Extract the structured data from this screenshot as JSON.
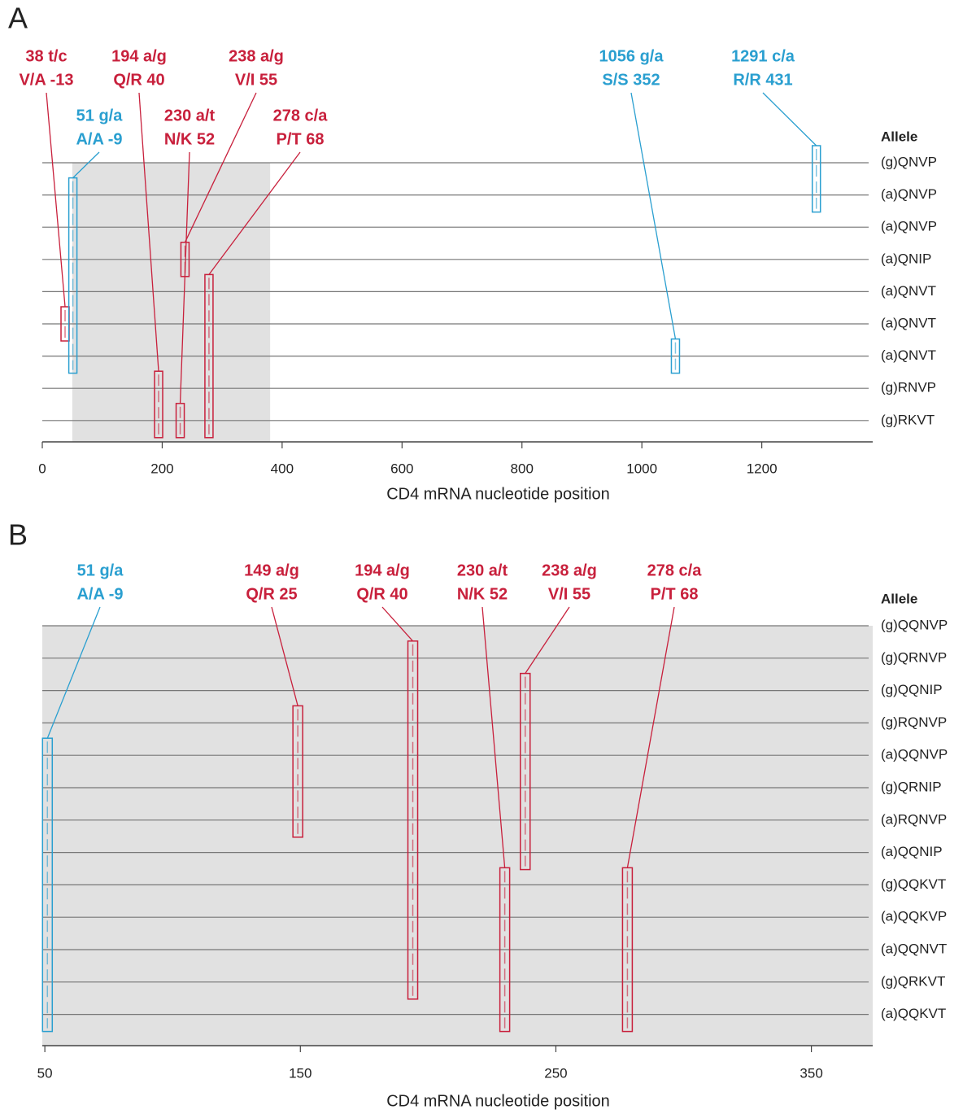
{
  "chart_data": [
    {
      "type": "variant",
      "panel": "A",
      "xlabel": "CD4 mRNA nucleotide position",
      "xlim": [
        0,
        1385
      ],
      "xticks": [
        0,
        200,
        400,
        600,
        800,
        1000,
        1200
      ],
      "shade": [
        50,
        380
      ],
      "shade_color": "#e1e1e1",
      "rows_title": "Allele",
      "rows": [
        "(g)QNVP",
        "(a)QNVP",
        "(a)QNVP",
        "(a)QNIP",
        "(a)QNVT",
        "(a)QNVT",
        "(a)QNVT",
        "(g)RNVP",
        "(g)RKVT"
      ],
      "variants": [
        {
          "label": "38 t/c",
          "effect": "V/A -13",
          "position": 38,
          "rows": [
            5,
            5
          ],
          "color": "#c8203c"
        },
        {
          "label": "51 g/a",
          "effect": "A/A -9",
          "position": 51,
          "rows": [
            1,
            6
          ],
          "color": "#2a9fd0"
        },
        {
          "label": "194 a/g",
          "effect": "Q/R 40",
          "position": 194,
          "rows": [
            7,
            8
          ],
          "color": "#c8203c"
        },
        {
          "label": "230 a/t",
          "effect": "N/K 52",
          "position": 230,
          "rows": [
            8,
            8
          ],
          "color": "#c8203c"
        },
        {
          "label": "238 a/g",
          "effect": "V/I 55",
          "position": 238,
          "rows": [
            3,
            3
          ],
          "color": "#c8203c"
        },
        {
          "label": "278 c/a",
          "effect": "P/T 68",
          "position": 278,
          "rows": [
            4,
            8
          ],
          "color": "#c8203c"
        },
        {
          "label": "1056 g/a",
          "effect": "S/S 352",
          "position": 1056,
          "rows": [
            6,
            6
          ],
          "color": "#2a9fd0"
        },
        {
          "label": "1291 c/a",
          "effect": "R/R 431",
          "position": 1291,
          "rows": [
            0,
            1
          ],
          "color": "#2a9fd0"
        }
      ]
    },
    {
      "type": "variant",
      "panel": "B",
      "xlabel": "CD4 mRNA nucleotide position",
      "xlim": [
        49,
        374
      ],
      "xticks": [
        50,
        150,
        250,
        350
      ],
      "shade": [
        49,
        374
      ],
      "shade_color": "#e1e1e1",
      "rows_title": "Allele",
      "rows": [
        "(g)QQNVP",
        "(g)QRNVP",
        "(g)QQNIP",
        "(g)RQNVP",
        "(a)QQNVP",
        "(g)QRNIP",
        "(a)RQNVP",
        "(a)QQNIP",
        "(g)QQKVT",
        "(a)QQKVP",
        "(a)QQNVT",
        "(g)QRKVT",
        "(a)QQKVT"
      ],
      "variants": [
        {
          "label": "51 g/a",
          "effect": "A/A -9",
          "position": 51,
          "rows": [
            4,
            12
          ],
          "color": "#2a9fd0"
        },
        {
          "label": "149 a/g",
          "effect": "Q/R 25",
          "position": 149,
          "rows": [
            3,
            6
          ],
          "color": "#c8203c"
        },
        {
          "label": "194 a/g",
          "effect": "Q/R 40",
          "position": 194,
          "rows": [
            1,
            11
          ],
          "color": "#c8203c"
        },
        {
          "label": "230 a/t",
          "effect": "N/K 52",
          "position": 230,
          "rows": [
            8,
            12
          ],
          "color": "#c8203c"
        },
        {
          "label": "238 a/g",
          "effect": "V/I 55",
          "position": 238,
          "rows": [
            2,
            7
          ],
          "color": "#c8203c"
        },
        {
          "label": "278 c/a",
          "effect": "P/T 68",
          "position": 278,
          "rows": [
            8,
            12
          ],
          "color": "#c8203c"
        }
      ]
    }
  ]
}
